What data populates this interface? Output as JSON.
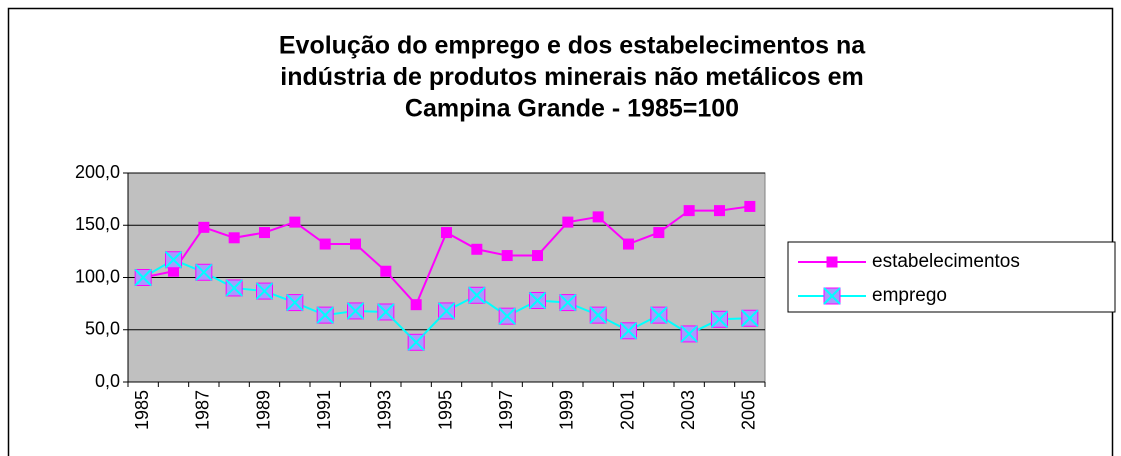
{
  "chart_data": {
    "type": "line",
    "title": [
      "Evolução do emprego e dos estabelecimentos na",
      "indústria de produtos minerais não metálicos em",
      "Campina Grande - 1985=100"
    ],
    "categories": [
      "1985",
      null,
      "1987",
      null,
      "1989",
      null,
      "1991",
      null,
      "1993",
      null,
      "1995",
      null,
      "1997",
      null,
      "1999",
      null,
      "2001",
      null,
      "2003",
      null,
      "2005"
    ],
    "series": [
      {
        "name": "estabelecimentos",
        "color": "#ff00ff",
        "marker": "square",
        "values": [
          100,
          106,
          148,
          138,
          143,
          153,
          132,
          132,
          106,
          74,
          143,
          127,
          121,
          121,
          153,
          158,
          132,
          143,
          164,
          164,
          168
        ]
      },
      {
        "name": "emprego",
        "color": "#00ffff",
        "marker": "x-square",
        "values": [
          100,
          117,
          105,
          90,
          87,
          76,
          64,
          68,
          67,
          38,
          68,
          83,
          63,
          78,
          76,
          64,
          49,
          64,
          46,
          60,
          61
        ]
      }
    ],
    "ylim": [
      0,
      200
    ],
    "yticks": [
      {
        "value": 0,
        "label": "0,0"
      },
      {
        "value": 50,
        "label": "50,0"
      },
      {
        "value": 100,
        "label": "100,0"
      },
      {
        "value": 150,
        "label": "150,0"
      },
      {
        "value": 200,
        "label": "200,0"
      }
    ],
    "grid": true,
    "plot_background": "#c0c0c0",
    "legend": "right"
  }
}
